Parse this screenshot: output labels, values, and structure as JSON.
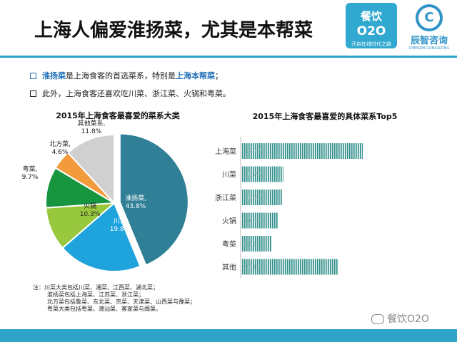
{
  "page_title": "上海人偏爱淮扬菜，尤其是本帮菜",
  "logos": {
    "left_line1": "餐饮",
    "left_line2": "O2O",
    "left_line3": "开启在线时代之路",
    "right_mark": "C",
    "right_name": "辰智咨询",
    "right_sub": "CHENZHI CONSULTING"
  },
  "bullets": [
    {
      "hl1": "淮扬菜",
      "t1": "是上海食客的首选菜系，特别是",
      "hl2": "上海本帮菜",
      "t2": "；"
    },
    {
      "text": "此外，上海食客还喜欢吃川菜、浙江菜、火锅和粤菜。"
    }
  ],
  "note_lines": [
    "注：川菜大类包括川菜、湘菜、江西菜、湖北菜；",
    "淮扬菜包括上海菜、江苏菜、浙江菜；",
    "北方菜包括鲁菜、东北菜、京菜、天津菜、山西菜与豫菜；",
    "粤菜大类包括粤菜、潮汕菜、客家菜与闽菜。"
  ],
  "watermark": "餐饮O2O",
  "colors": {
    "accent": "#30a3c8",
    "highlight": "#1f6fb8"
  },
  "chart_data": [
    {
      "type": "pie",
      "title": "2015年上海食客最喜爱的菜系大类",
      "slices": [
        {
          "label": "淮扬菜,",
          "value": 43.8,
          "display": "43.8%",
          "color": "#2f7f97"
        },
        {
          "label": "川菜",
          "value": 19.8,
          "display": "19.8%",
          "color": "#1ea3dd"
        },
        {
          "label": "火锅",
          "value": 10.3,
          "display": "10.3%",
          "color": "#98c83e"
        },
        {
          "label": "粤菜,",
          "value": 9.7,
          "display": "9.7%",
          "color": "#17963f"
        },
        {
          "label": "北方菜,",
          "value": 4.6,
          "display": "4.6%",
          "color": "#f29a3c"
        },
        {
          "label": "其他菜系,",
          "value": 11.8,
          "display": "11.8%",
          "color": "#d0d0d0"
        }
      ],
      "exploded": "淮扬菜,"
    },
    {
      "type": "bar",
      "orientation": "horizontal",
      "title": "2015年上海食客最喜爱的具体菜系Top5",
      "categories": [
        "上海菜",
        "川菜",
        "浙江菜",
        "火锅",
        "粤菜",
        "其他"
      ],
      "values": [
        33.9,
        11.7,
        11.4,
        10.3,
        8.5,
        27.1
      ],
      "labels": [
        "33.9%",
        "11.7%",
        "11.4%",
        "10.3%",
        "8.5%",
        "27.1%"
      ],
      "bar_color": "#2f8f8a"
    }
  ]
}
